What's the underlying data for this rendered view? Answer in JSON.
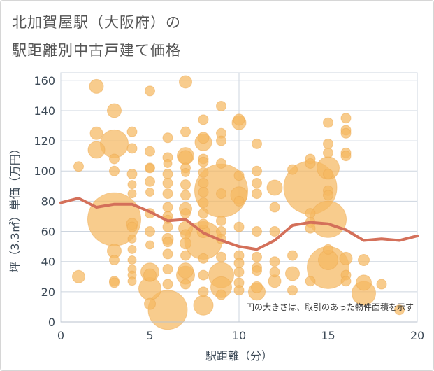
{
  "title_line1": "北加賀屋駅（大阪府）の",
  "title_line2": "駅距離別中古戸建て価格",
  "note": "円の大きさは、取引のあった物件面積を示す",
  "colors": {
    "bubble": "#f5b961",
    "bubble_stroke": "#eeaa50",
    "line": "#d4705a",
    "grid": "#cdd5df",
    "axis_text": "#3d4a57"
  },
  "chart_data": {
    "type": "scatter",
    "xlabel": "駅距離（分）",
    "ylabel": "坪（3.3㎡）単価（万円）",
    "xlim": [
      0,
      20
    ],
    "ylim": [
      0,
      165
    ],
    "xticks": [
      0,
      5,
      10,
      15,
      20
    ],
    "yticks": [
      0,
      20,
      40,
      60,
      80,
      100,
      120,
      140,
      160
    ],
    "grid": true,
    "points": [
      {
        "x": 1,
        "y": 103,
        "r": 7
      },
      {
        "x": 1,
        "y": 30,
        "r": 9
      },
      {
        "x": 2,
        "y": 156,
        "r": 10
      },
      {
        "x": 2,
        "y": 125,
        "r": 9
      },
      {
        "x": 2,
        "y": 114,
        "r": 12
      },
      {
        "x": 3,
        "y": 140,
        "r": 10
      },
      {
        "x": 3,
        "y": 118,
        "r": 20
      },
      {
        "x": 3,
        "y": 108,
        "r": 7
      },
      {
        "x": 3,
        "y": 100,
        "r": 7
      },
      {
        "x": 3,
        "y": 68,
        "r": 38
      },
      {
        "x": 3,
        "y": 47,
        "r": 10
      },
      {
        "x": 3,
        "y": 41,
        "r": 7
      },
      {
        "x": 3,
        "y": 27,
        "r": 7
      },
      {
        "x": 3,
        "y": 26,
        "r": 7
      },
      {
        "x": 4,
        "y": 126,
        "r": 7
      },
      {
        "x": 4,
        "y": 115,
        "r": 7
      },
      {
        "x": 4,
        "y": 98,
        "r": 7
      },
      {
        "x": 4,
        "y": 91,
        "r": 6
      },
      {
        "x": 4,
        "y": 85,
        "r": 6
      },
      {
        "x": 4,
        "y": 65,
        "r": 8
      },
      {
        "x": 4,
        "y": 63,
        "r": 7
      },
      {
        "x": 4,
        "y": 55,
        "r": 6
      },
      {
        "x": 4,
        "y": 48,
        "r": 6
      },
      {
        "x": 4,
        "y": 41,
        "r": 6
      },
      {
        "x": 4,
        "y": 35,
        "r": 6
      },
      {
        "x": 4,
        "y": 31,
        "r": 6
      },
      {
        "x": 4,
        "y": 27,
        "r": 6
      },
      {
        "x": 5,
        "y": 153,
        "r": 7
      },
      {
        "x": 5,
        "y": 113,
        "r": 7
      },
      {
        "x": 5,
        "y": 102,
        "r": 7
      },
      {
        "x": 5,
        "y": 102,
        "r": 6
      },
      {
        "x": 5,
        "y": 93,
        "r": 7
      },
      {
        "x": 5,
        "y": 86,
        "r": 6
      },
      {
        "x": 5,
        "y": 72,
        "r": 7
      },
      {
        "x": 5,
        "y": 60,
        "r": 7
      },
      {
        "x": 5,
        "y": 51,
        "r": 6
      },
      {
        "x": 5,
        "y": 33,
        "r": 13
      },
      {
        "x": 5,
        "y": 31,
        "r": 9
      },
      {
        "x": 5,
        "y": 22,
        "r": 16
      },
      {
        "x": 5,
        "y": 12,
        "r": 8
      },
      {
        "x": 6,
        "y": 122,
        "r": 7
      },
      {
        "x": 6,
        "y": 109,
        "r": 7
      },
      {
        "x": 6,
        "y": 105,
        "r": 6
      },
      {
        "x": 6,
        "y": 98,
        "r": 7
      },
      {
        "x": 6,
        "y": 92,
        "r": 7
      },
      {
        "x": 6,
        "y": 85,
        "r": 7
      },
      {
        "x": 6,
        "y": 76,
        "r": 7
      },
      {
        "x": 6,
        "y": 70,
        "r": 7
      },
      {
        "x": 6,
        "y": 68,
        "r": 6
      },
      {
        "x": 6,
        "y": 63,
        "r": 7
      },
      {
        "x": 6,
        "y": 55,
        "r": 8
      },
      {
        "x": 6,
        "y": 53,
        "r": 7
      },
      {
        "x": 6,
        "y": 45,
        "r": 7
      },
      {
        "x": 6,
        "y": 35,
        "r": 7
      },
      {
        "x": 6,
        "y": 25,
        "r": 7
      },
      {
        "x": 6,
        "y": 8,
        "r": 28
      },
      {
        "x": 7,
        "y": 159,
        "r": 9
      },
      {
        "x": 7,
        "y": 126,
        "r": 7
      },
      {
        "x": 7,
        "y": 110,
        "r": 12
      },
      {
        "x": 7,
        "y": 109,
        "r": 10
      },
      {
        "x": 7,
        "y": 102,
        "r": 7
      },
      {
        "x": 7,
        "y": 99,
        "r": 6
      },
      {
        "x": 7,
        "y": 91,
        "r": 7
      },
      {
        "x": 7,
        "y": 84,
        "r": 7
      },
      {
        "x": 7,
        "y": 75,
        "r": 9
      },
      {
        "x": 7,
        "y": 72,
        "r": 7
      },
      {
        "x": 7,
        "y": 62,
        "r": 10
      },
      {
        "x": 7,
        "y": 58,
        "r": 7
      },
      {
        "x": 7,
        "y": 52,
        "r": 8
      },
      {
        "x": 7,
        "y": 44,
        "r": 7
      },
      {
        "x": 7,
        "y": 34,
        "r": 11
      },
      {
        "x": 7,
        "y": 31,
        "r": 13
      },
      {
        "x": 7,
        "y": 25,
        "r": 7
      },
      {
        "x": 8,
        "y": 134,
        "r": 7
      },
      {
        "x": 8,
        "y": 122,
        "r": 8
      },
      {
        "x": 8,
        "y": 119,
        "r": 12
      },
      {
        "x": 8,
        "y": 108,
        "r": 7
      },
      {
        "x": 8,
        "y": 106,
        "r": 7
      },
      {
        "x": 8,
        "y": 99,
        "r": 7
      },
      {
        "x": 8,
        "y": 92,
        "r": 7
      },
      {
        "x": 8,
        "y": 86,
        "r": 7
      },
      {
        "x": 8,
        "y": 79,
        "r": 7
      },
      {
        "x": 8,
        "y": 72,
        "r": 7
      },
      {
        "x": 8,
        "y": 65,
        "r": 7
      },
      {
        "x": 8,
        "y": 60,
        "r": 9
      },
      {
        "x": 8,
        "y": 54,
        "r": 27
      },
      {
        "x": 8,
        "y": 42,
        "r": 7
      },
      {
        "x": 8,
        "y": 31,
        "r": 7
      },
      {
        "x": 8,
        "y": 20,
        "r": 7
      },
      {
        "x": 8,
        "y": 11,
        "r": 14
      },
      {
        "x": 9,
        "y": 143,
        "r": 7
      },
      {
        "x": 9,
        "y": 125,
        "r": 7
      },
      {
        "x": 9,
        "y": 120,
        "r": 7
      },
      {
        "x": 9,
        "y": 105,
        "r": 7
      },
      {
        "x": 9,
        "y": 87,
        "r": 38
      },
      {
        "x": 9,
        "y": 85,
        "r": 7
      },
      {
        "x": 9,
        "y": 67,
        "r": 7
      },
      {
        "x": 9,
        "y": 60,
        "r": 7
      },
      {
        "x": 9,
        "y": 55,
        "r": 7
      },
      {
        "x": 9,
        "y": 43,
        "r": 7
      },
      {
        "x": 9,
        "y": 31,
        "r": 18
      },
      {
        "x": 9,
        "y": 23,
        "r": 15
      },
      {
        "x": 9,
        "y": 18,
        "r": 7
      },
      {
        "x": 10,
        "y": 134,
        "r": 8
      },
      {
        "x": 10,
        "y": 132,
        "r": 10
      },
      {
        "x": 10,
        "y": 97,
        "r": 7
      },
      {
        "x": 10,
        "y": 84,
        "r": 12
      },
      {
        "x": 10,
        "y": 80,
        "r": 7
      },
      {
        "x": 10,
        "y": 63,
        "r": 7
      },
      {
        "x": 10,
        "y": 44,
        "r": 7
      },
      {
        "x": 10,
        "y": 39,
        "r": 7
      },
      {
        "x": 10,
        "y": 33,
        "r": 7
      },
      {
        "x": 10,
        "y": 26,
        "r": 7
      },
      {
        "x": 10,
        "y": 21,
        "r": 7
      },
      {
        "x": 11,
        "y": 118,
        "r": 7
      },
      {
        "x": 11,
        "y": 100,
        "r": 7
      },
      {
        "x": 11,
        "y": 92,
        "r": 7
      },
      {
        "x": 11,
        "y": 85,
        "r": 7
      },
      {
        "x": 11,
        "y": 60,
        "r": 7
      },
      {
        "x": 11,
        "y": 43,
        "r": 7
      },
      {
        "x": 11,
        "y": 36,
        "r": 7
      },
      {
        "x": 11,
        "y": 34,
        "r": 7
      },
      {
        "x": 11,
        "y": 23,
        "r": 8
      },
      {
        "x": 11,
        "y": 20,
        "r": 12
      },
      {
        "x": 12,
        "y": 89,
        "r": 11
      },
      {
        "x": 12,
        "y": 76,
        "r": 7
      },
      {
        "x": 12,
        "y": 60,
        "r": 7
      },
      {
        "x": 12,
        "y": 40,
        "r": 7
      },
      {
        "x": 12,
        "y": 33,
        "r": 7
      },
      {
        "x": 12,
        "y": 27,
        "r": 9
      },
      {
        "x": 13,
        "y": 101,
        "r": 7
      },
      {
        "x": 13,
        "y": 44,
        "r": 7
      },
      {
        "x": 13,
        "y": 32,
        "r": 10
      },
      {
        "x": 13,
        "y": 21,
        "r": 7
      },
      {
        "x": 14,
        "y": 108,
        "r": 7
      },
      {
        "x": 14,
        "y": 105,
        "r": 7
      },
      {
        "x": 14,
        "y": 89,
        "r": 38
      },
      {
        "x": 14,
        "y": 72,
        "r": 7
      },
      {
        "x": 14,
        "y": 66,
        "r": 7
      },
      {
        "x": 14,
        "y": 62,
        "r": 7
      },
      {
        "x": 14,
        "y": 27,
        "r": 7
      },
      {
        "x": 15,
        "y": 132,
        "r": 7
      },
      {
        "x": 15,
        "y": 118,
        "r": 7
      },
      {
        "x": 15,
        "y": 112,
        "r": 7
      },
      {
        "x": 15,
        "y": 102,
        "r": 16
      },
      {
        "x": 15,
        "y": 98,
        "r": 7
      },
      {
        "x": 15,
        "y": 87,
        "r": 7
      },
      {
        "x": 15,
        "y": 84,
        "r": 7
      },
      {
        "x": 15,
        "y": 68,
        "r": 26
      },
      {
        "x": 15,
        "y": 48,
        "r": 7
      },
      {
        "x": 15,
        "y": 41,
        "r": 14
      },
      {
        "x": 15,
        "y": 36,
        "r": 30
      },
      {
        "x": 16,
        "y": 135,
        "r": 7
      },
      {
        "x": 16,
        "y": 127,
        "r": 7
      },
      {
        "x": 16,
        "y": 125,
        "r": 7
      },
      {
        "x": 16,
        "y": 112,
        "r": 7
      },
      {
        "x": 16,
        "y": 110,
        "r": 7
      },
      {
        "x": 16,
        "y": 42,
        "r": 9
      },
      {
        "x": 16,
        "y": 31,
        "r": 7
      },
      {
        "x": 16,
        "y": 27,
        "r": 7
      },
      {
        "x": 17,
        "y": 41,
        "r": 8
      },
      {
        "x": 17,
        "y": 26,
        "r": 11
      },
      {
        "x": 17,
        "y": 19,
        "r": 17
      },
      {
        "x": 18,
        "y": 25,
        "r": 7
      },
      {
        "x": 19,
        "y": 8,
        "r": 7
      }
    ],
    "trend_line": {
      "x": [
        0,
        1,
        2,
        3,
        4,
        5,
        6,
        7,
        8,
        9,
        10,
        11,
        12,
        13,
        14,
        15,
        16,
        17,
        18,
        19,
        20
      ],
      "y": [
        79,
        82,
        76,
        78,
        78,
        73,
        67,
        68,
        59,
        54,
        50,
        48,
        54,
        64,
        66,
        65,
        61,
        54,
        55,
        54,
        57
      ]
    }
  }
}
